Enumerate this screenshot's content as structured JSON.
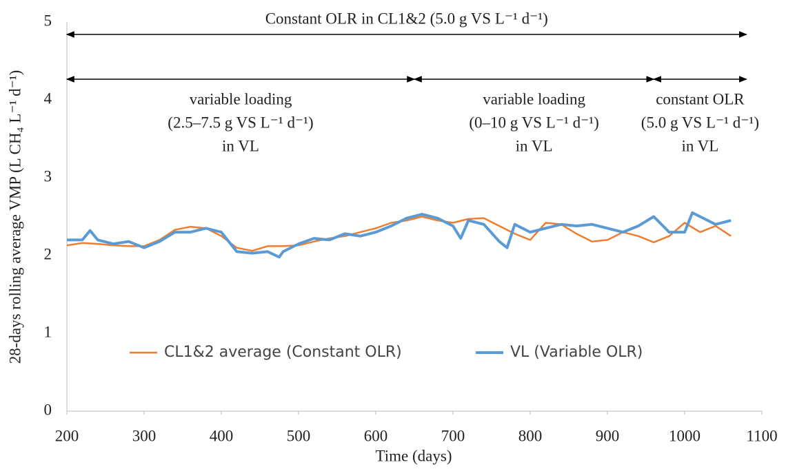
{
  "chart_data": {
    "type": "line",
    "xlabel": "Time (days)",
    "ylabel": "28-days rolling average VMP (L CH₄ L⁻¹ d⁻¹)",
    "xlim": [
      200,
      1100
    ],
    "xticks": [
      200,
      300,
      400,
      500,
      600,
      700,
      800,
      900,
      1000,
      1100
    ],
    "ylim": [
      0,
      5
    ],
    "yticks": [
      0,
      1,
      2,
      3,
      4,
      5
    ],
    "grid": false,
    "legend": "lower center",
    "series": [
      {
        "name": "CL1&2 average (Constant OLR)",
        "color": "#ED7D31",
        "x": [
          200,
          220,
          240,
          260,
          280,
          300,
          320,
          340,
          360,
          380,
          400,
          420,
          440,
          460,
          480,
          500,
          520,
          540,
          560,
          580,
          600,
          620,
          640,
          660,
          680,
          700,
          720,
          740,
          760,
          780,
          800,
          820,
          840,
          860,
          880,
          900,
          920,
          940,
          960,
          980,
          1000,
          1020,
          1040,
          1060
        ],
        "values": [
          2.13,
          2.16,
          2.15,
          2.13,
          2.12,
          2.12,
          2.2,
          2.33,
          2.37,
          2.35,
          2.25,
          2.1,
          2.06,
          2.12,
          2.12,
          2.13,
          2.18,
          2.22,
          2.25,
          2.3,
          2.35,
          2.42,
          2.45,
          2.5,
          2.45,
          2.42,
          2.47,
          2.48,
          2.38,
          2.28,
          2.2,
          2.42,
          2.4,
          2.28,
          2.18,
          2.2,
          2.3,
          2.25,
          2.17,
          2.25,
          2.42,
          2.3,
          2.38,
          2.25
        ]
      },
      {
        "name": "VL (Variable OLR)",
        "color": "#5B9BD5",
        "x": [
          200,
          220,
          230,
          240,
          260,
          280,
          300,
          320,
          340,
          360,
          380,
          400,
          420,
          440,
          460,
          475,
          480,
          500,
          520,
          540,
          560,
          580,
          600,
          620,
          640,
          660,
          680,
          700,
          710,
          720,
          740,
          760,
          770,
          780,
          800,
          820,
          840,
          860,
          880,
          900,
          920,
          940,
          960,
          980,
          1000,
          1010,
          1020,
          1040,
          1060
        ],
        "values": [
          2.2,
          2.2,
          2.32,
          2.2,
          2.15,
          2.18,
          2.1,
          2.18,
          2.3,
          2.3,
          2.35,
          2.3,
          2.05,
          2.03,
          2.05,
          1.98,
          2.05,
          2.15,
          2.22,
          2.2,
          2.28,
          2.25,
          2.3,
          2.38,
          2.48,
          2.53,
          2.48,
          2.38,
          2.22,
          2.45,
          2.4,
          2.18,
          2.1,
          2.4,
          2.3,
          2.35,
          2.4,
          2.38,
          2.4,
          2.35,
          2.3,
          2.38,
          2.5,
          2.3,
          2.3,
          2.55,
          2.5,
          2.4,
          2.45
        ]
      }
    ],
    "annotations": [
      {
        "span": [
          200,
          1080
        ],
        "lines": [
          "Constant OLR in CL1&2 (5.0 g VS L⁻¹ d⁻¹)"
        ]
      },
      {
        "span": [
          200,
          650
        ],
        "lines": [
          "variable loading",
          "(2.5–7.5 g VS L⁻¹ d⁻¹)",
          "in VL"
        ]
      },
      {
        "span": [
          650,
          960
        ],
        "lines": [
          "variable loading",
          "(0–10 g VS L⁻¹ d⁻¹)",
          "in VL"
        ]
      },
      {
        "span": [
          960,
          1080
        ],
        "lines": [
          "constant OLR",
          "(5.0 g VS L⁻¹ d⁻¹)",
          "in VL"
        ]
      }
    ]
  }
}
